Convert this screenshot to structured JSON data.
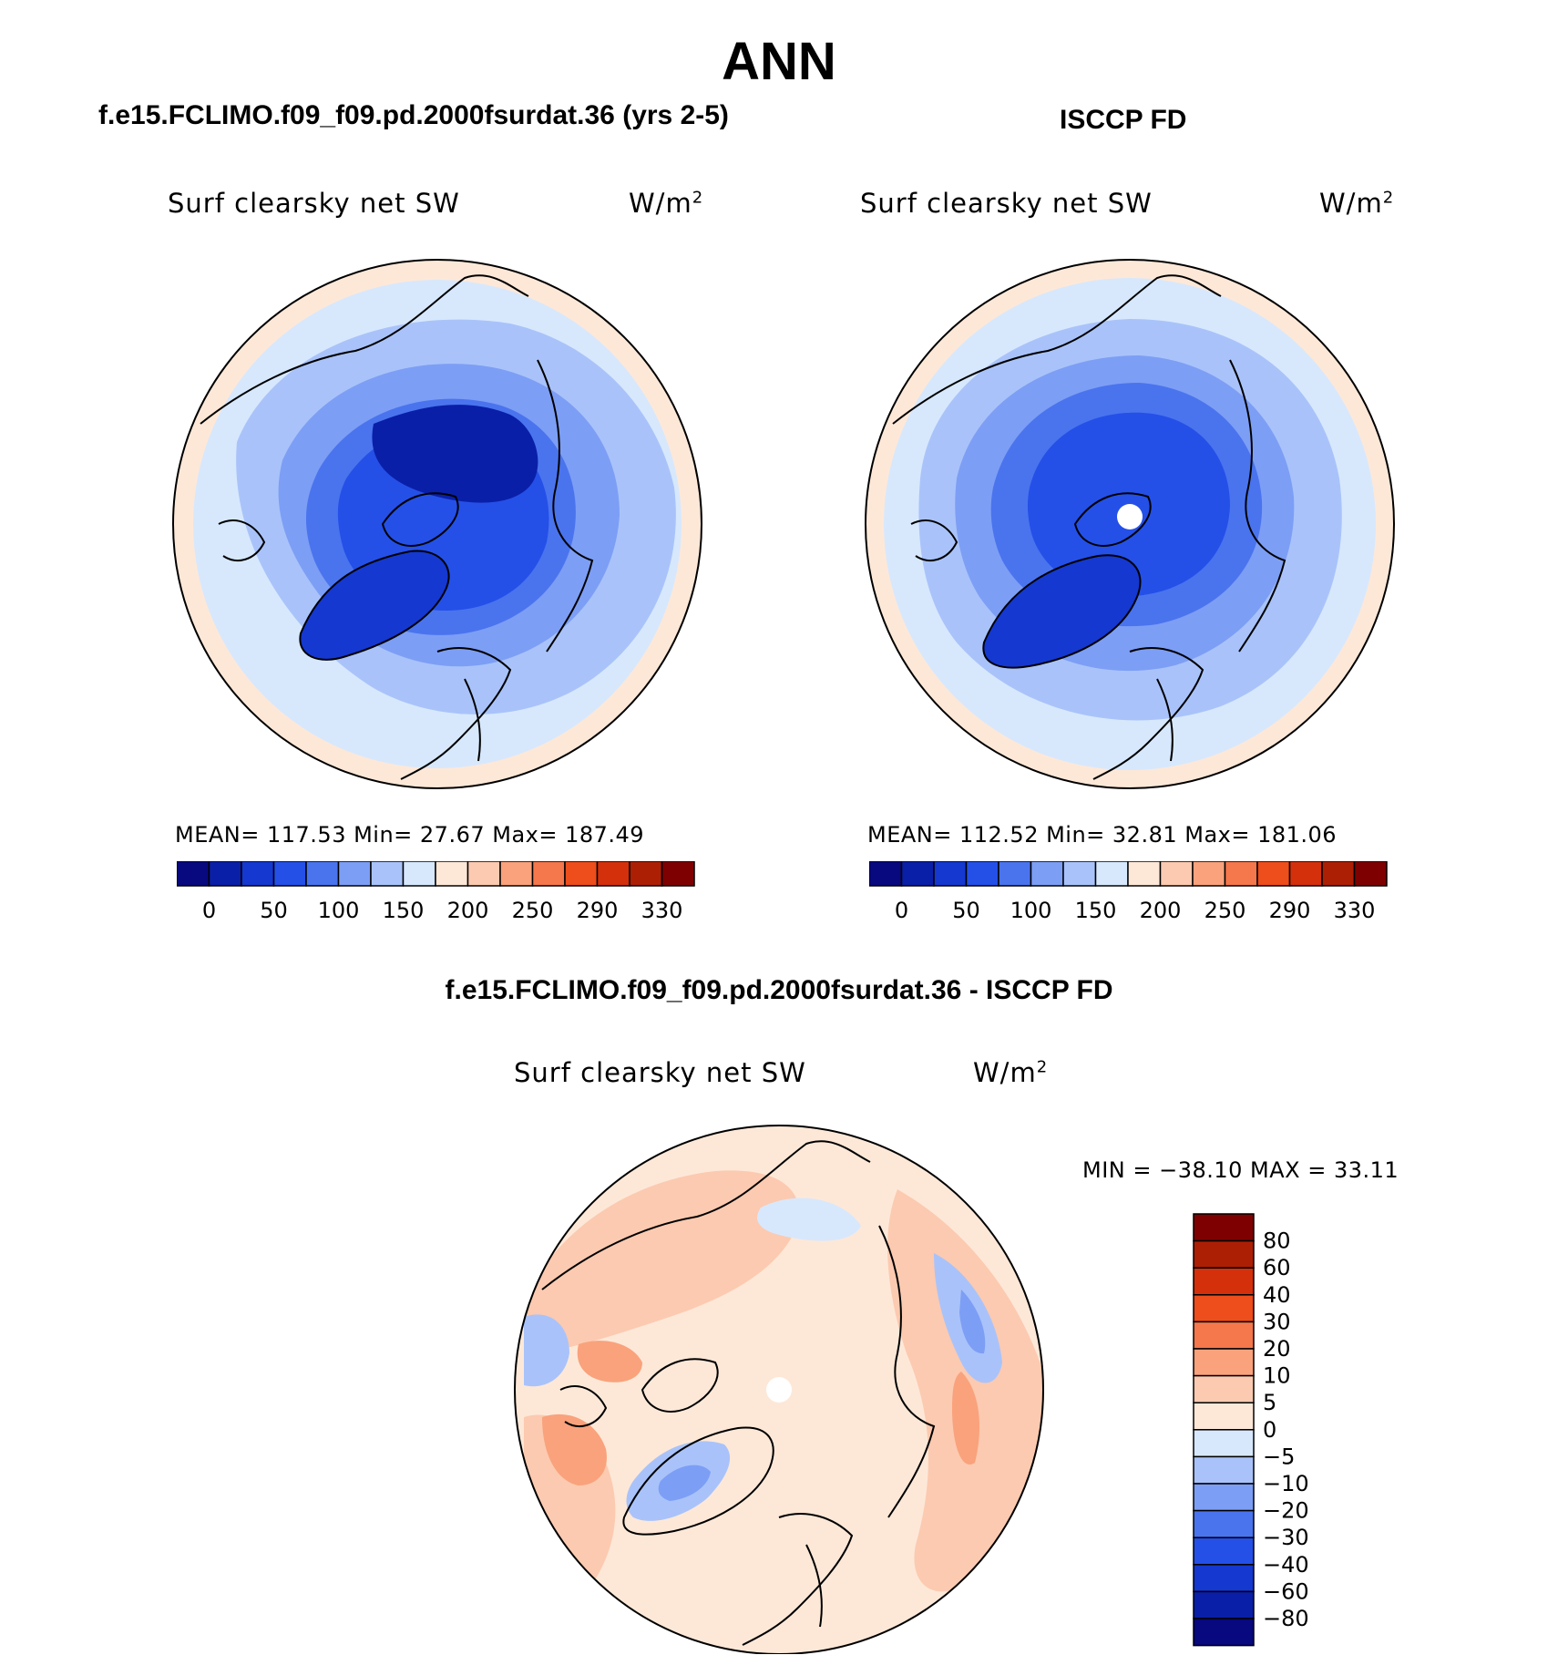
{
  "title": "ANN",
  "colorbar_colors_abs": [
    "#08087f",
    "#0a1fa8",
    "#1538d0",
    "#2450e8",
    "#4a74ee",
    "#7d9ef5",
    "#a9c3fa",
    "#d7e8fd",
    "#fde8d8",
    "#fccab0",
    "#f9a27c",
    "#f5774c",
    "#ee4d1c",
    "#d4300c",
    "#ad1f04",
    "#7f0000"
  ],
  "colorbar_colors_diff": [
    "#08087f",
    "#0a1fa8",
    "#1538d0",
    "#2450e8",
    "#4a74ee",
    "#7d9ef5",
    "#a9c3fa",
    "#d7e8fd",
    "#fde8d8",
    "#fccab0",
    "#f9a27c",
    "#f5774c",
    "#ee4d1c",
    "#d4300c",
    "#ad1f04",
    "#7f0000"
  ],
  "panels": [
    {
      "title": "f.e15.FCLIMO.f09_f09.pd.2000fsurdat.36 (yrs 2-5)",
      "var_label": "Surf clearsky net SW",
      "units": "W/m",
      "units_sup": "2",
      "stats": {
        "mean": "117.53",
        "min": "27.67",
        "max": "187.49"
      },
      "stats_text": "MEAN= 117.53   Min=   27.67   Max= 187.49",
      "colorbar_ticks": [
        "0",
        "50",
        "100",
        "150",
        "200",
        "250",
        "290",
        "330"
      ]
    },
    {
      "title": "ISCCP FD",
      "var_label": "Surf clearsky net SW",
      "units": "W/m",
      "units_sup": "2",
      "stats": {
        "mean": "112.52",
        "min": "32.81",
        "max": "181.06"
      },
      "stats_text": "MEAN= 112.52   Min=   32.81   Max= 181.06",
      "colorbar_ticks": [
        "0",
        "50",
        "100",
        "150",
        "200",
        "250",
        "290",
        "330"
      ]
    }
  ],
  "difference": {
    "title": "f.e15.FCLIMO.f09_f09.pd.2000fsurdat.36 - ISCCP FD",
    "var_label": "Surf clearsky net SW",
    "units": "W/m",
    "units_sup": "2",
    "stats_text": "MIN = −38.10 MAX =   33.11",
    "colorbar_ticks": [
      "80",
      "60",
      "40",
      "30",
      "20",
      "10",
      "5",
      "0",
      "−5",
      "−10",
      "−20",
      "−30",
      "−40",
      "−60",
      "−80"
    ]
  }
}
